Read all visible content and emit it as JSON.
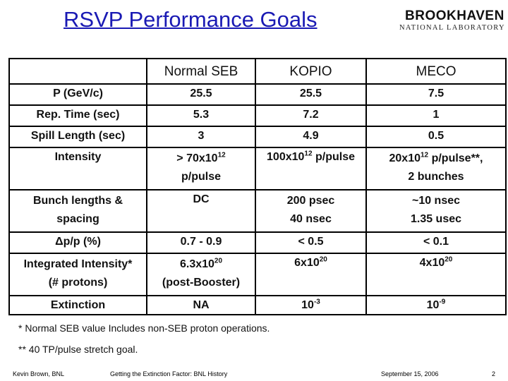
{
  "title": "RSVP Performance Goals",
  "logo": {
    "line1": "BROOKHAVEN",
    "line2": "NATIONAL LABORATORY"
  },
  "table": {
    "headers": [
      "",
      "Normal SEB",
      "KOPIO",
      "MECO"
    ],
    "rows": [
      {
        "label": "P  (GeV/c)",
        "cells": [
          "25.5",
          "25.5",
          "7.5"
        ]
      },
      {
        "label": "Rep. Time (sec)",
        "cells": [
          "5.3",
          "7.2",
          "1"
        ]
      },
      {
        "label": "Spill Length (sec)",
        "cells": [
          "3",
          "4.9",
          "0.5"
        ]
      },
      {
        "label": "Intensity",
        "cells": [
          {
            "pre": "> 70x10",
            "sup": "12",
            "post": "",
            "line2": "p/pulse"
          },
          {
            "pre": "100x10",
            "sup": "12",
            "post": " p/pulse"
          },
          {
            "pre": "20x10",
            "sup": "12",
            "post": " p/pulse**,",
            "line2": "2 bunches"
          }
        ]
      },
      {
        "label": "Bunch lengths &",
        "label2": "spacing",
        "cells": [
          "DC",
          {
            "pre": "200 psec",
            "line2": "40 nsec"
          },
          {
            "pre": "~10 nsec",
            "line2": "1.35 usec"
          }
        ]
      },
      {
        "label": "Δp/p (%)",
        "cells": [
          "0.7 - 0.9",
          "< 0.5",
          "< 0.1"
        ]
      },
      {
        "label": "Integrated Intensity*",
        "label2": "(# protons)",
        "cells": [
          {
            "pre": "6.3x10",
            "sup": "20",
            "line2": "(post-Booster)"
          },
          {
            "pre": "6x10",
            "sup": "20"
          },
          {
            "pre": "4x10",
            "sup": "20"
          }
        ]
      },
      {
        "label": "Extinction",
        "cells": [
          "NA",
          {
            "pre": "10",
            "sup": "-3"
          },
          {
            "pre": "10",
            "sup": "-9"
          }
        ]
      }
    ]
  },
  "notes": [
    "* Normal SEB value Includes non-SEB proton operations.",
    "** 40 TP/pulse stretch goal."
  ],
  "footer": {
    "author": "Kevin Brown, BNL",
    "talk": "Getting the Extinction Factor: BNL History",
    "date": "September 15, 2006",
    "page": "2"
  }
}
